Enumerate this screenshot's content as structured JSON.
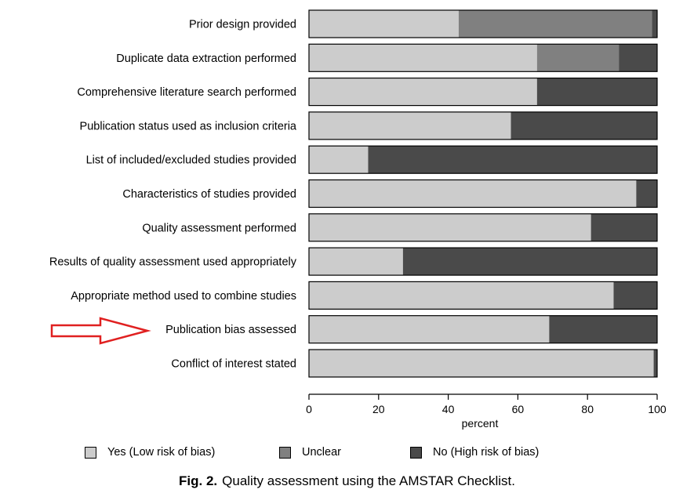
{
  "chart_data": {
    "type": "bar",
    "orientation": "horizontal",
    "stacked": true,
    "categories": [
      "Prior design provided",
      "Duplicate data extraction performed",
      "Comprehensive literature search performed",
      "Publication status used as inclusion criteria",
      "List of included/excluded studies provided",
      "Characteristics of studies provided",
      "Quality assessment performed",
      "Results of quality assessment used appropriately",
      "Appropriate method used to combine studies",
      "Publication bias assessed",
      "Conflict of interest stated"
    ],
    "series": [
      {
        "name": "Yes (Low risk of bias)",
        "color": "#cccccc",
        "values": [
          43,
          65.5,
          65.5,
          58,
          17,
          94,
          81,
          27,
          87.5,
          69,
          99
        ]
      },
      {
        "name": "Unclear",
        "color": "#808080",
        "values": [
          55.5,
          23.5,
          0,
          0,
          0,
          0,
          0,
          0,
          0,
          0,
          0
        ]
      },
      {
        "name": "No (High risk of bias)",
        "color": "#4a4a4a",
        "values": [
          1.5,
          11,
          34.5,
          42,
          83,
          6,
          19,
          73,
          12.5,
          31,
          1
        ]
      }
    ],
    "xlabel": "percent",
    "xlim": [
      0,
      100
    ],
    "xticks": [
      "0",
      "20",
      "40",
      "60",
      "80",
      "100"
    ],
    "legend_position": "bottom",
    "highlighted_category": "Publication bias assessed",
    "highlight_color": "#e02020",
    "caption_label": "Fig. 2.",
    "caption_text": "Quality assessment using the AMSTAR Checklist."
  }
}
